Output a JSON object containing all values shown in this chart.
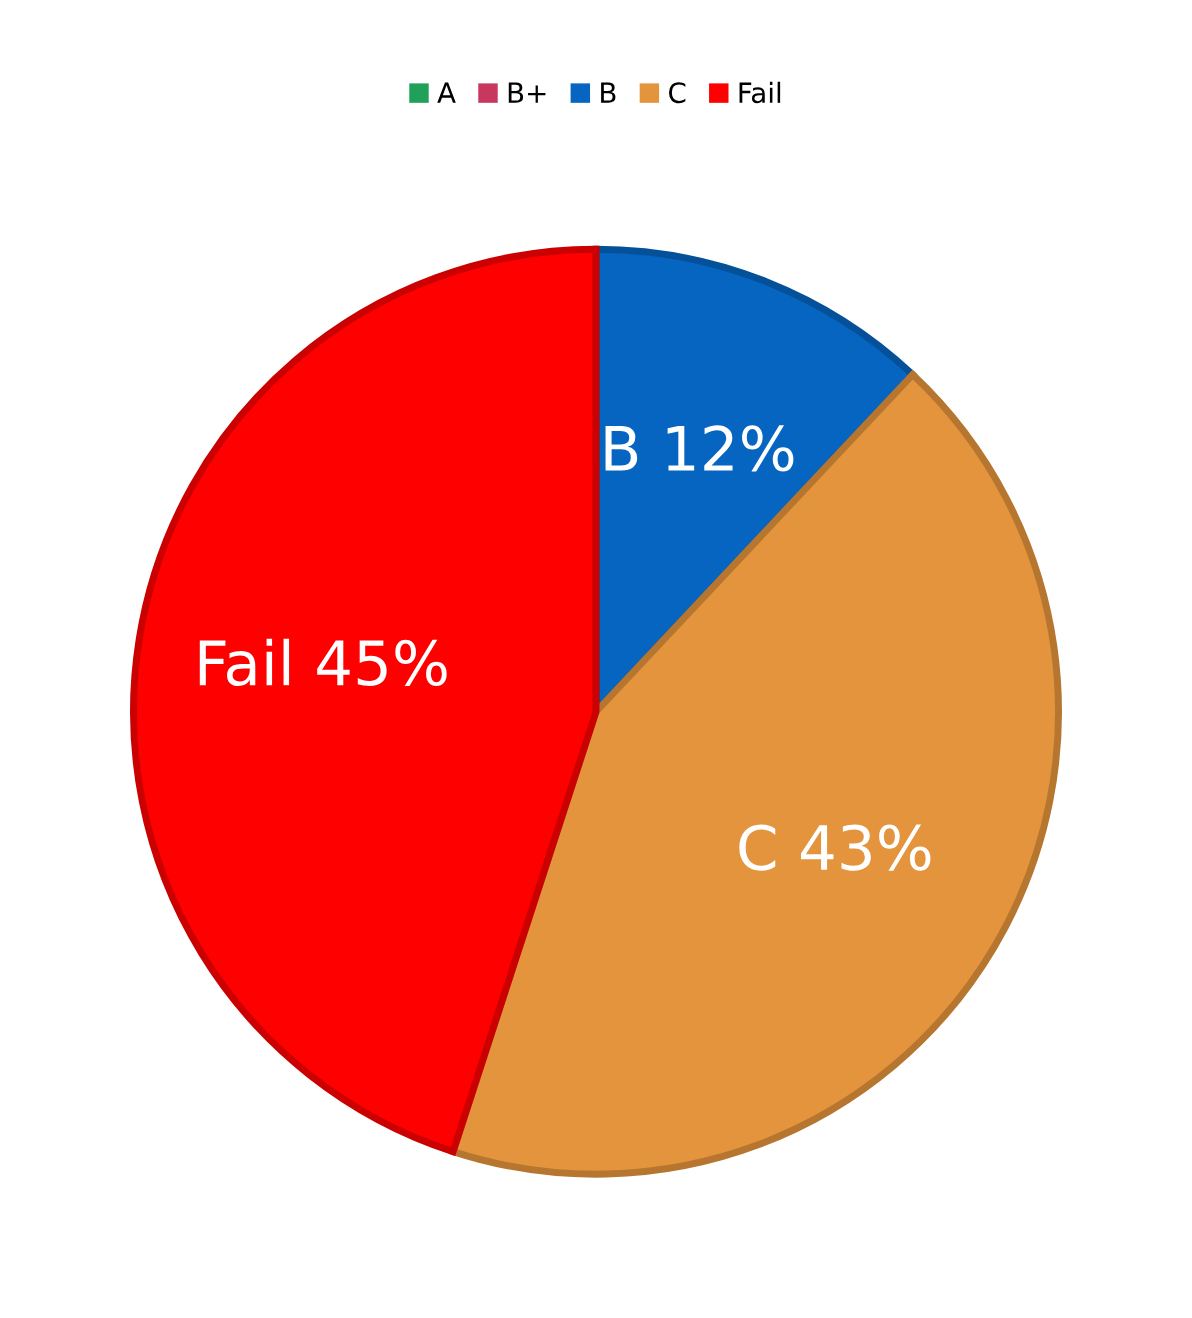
{
  "chart_data": {
    "type": "pie",
    "categories": [
      "A",
      "B+",
      "B",
      "C",
      "Fail"
    ],
    "values": [
      0,
      0,
      12,
      43,
      45
    ],
    "colors": [
      "#21a05a",
      "#c8375e",
      "#0565c0",
      "#e3943c",
      "#fe0000"
    ],
    "value_labels": [
      null,
      null,
      "B 12%",
      "C 43%",
      "Fail 45%"
    ],
    "legend": "top"
  }
}
